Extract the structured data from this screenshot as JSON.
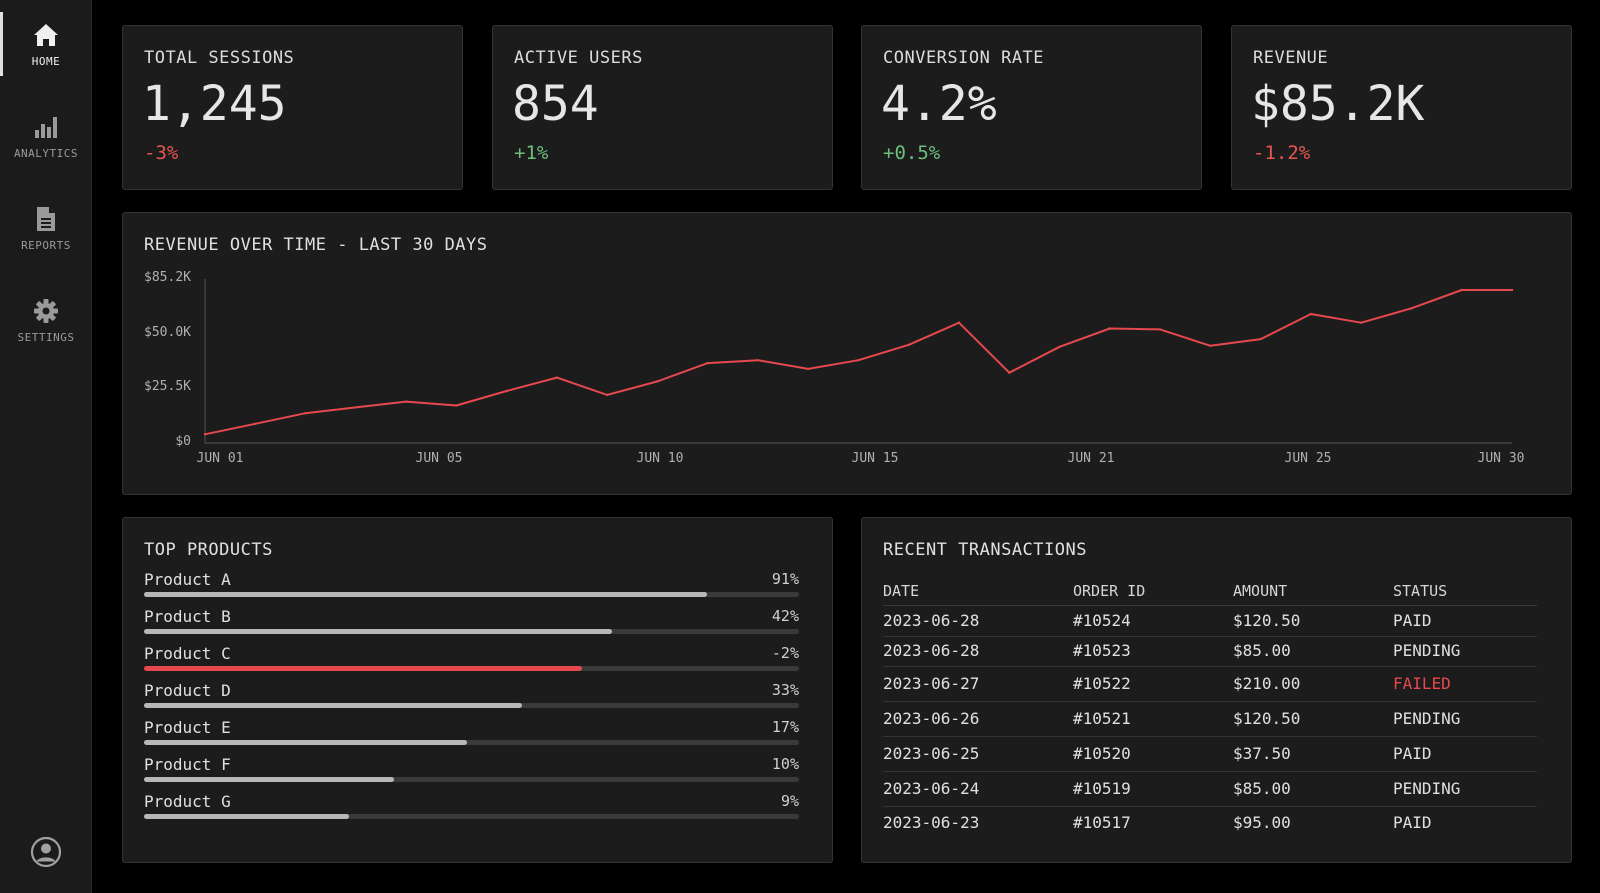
{
  "sidebar": {
    "items": [
      {
        "label": "HOME",
        "icon": "home-icon",
        "active": true
      },
      {
        "label": "ANALYTICS",
        "icon": "bar-chart-icon",
        "active": false
      },
      {
        "label": "REPORTS",
        "icon": "document-icon",
        "active": false
      },
      {
        "label": "SETTINGS",
        "icon": "gear-icon",
        "active": false
      }
    ],
    "avatar_icon": "user-circle-icon"
  },
  "kpis": [
    {
      "label": "TOTAL SESSIONS",
      "value": "1,245",
      "delta": "-3%",
      "trend": "negative"
    },
    {
      "label": "ACTIVE USERS",
      "value": "854",
      "delta": "+1%",
      "trend": "positive"
    },
    {
      "label": "CONVERSION RATE",
      "value": "4.2%",
      "delta": "+0.5%",
      "trend": "positive"
    },
    {
      "label": "REVENUE",
      "value": "$85.2K",
      "delta": "-1.2%",
      "trend": "negative"
    }
  ],
  "revenue_chart": {
    "title": "REVENUE OVER TIME - LAST 30 DAYS",
    "y_tick_labels": [
      "$85.2K",
      "$50.0K",
      "$25.5K",
      "$0"
    ],
    "x_tick_labels": [
      "JUN 01",
      "JUN 05",
      "JUN 10",
      "JUN 15",
      "JUN 21",
      "JUN 25",
      "JUN 30"
    ]
  },
  "chart_data": {
    "type": "line",
    "title": "REVENUE OVER TIME - LAST 30 DAYS",
    "xlabel": "",
    "ylabel": "",
    "ylim": [
      0,
      85.2
    ],
    "y_unit": "$K",
    "grid": false,
    "x": [
      1,
      2,
      3,
      4,
      5,
      6,
      7,
      8,
      9,
      10,
      11,
      12,
      13,
      14,
      15,
      16,
      17,
      18,
      19,
      20,
      21,
      22,
      23,
      24,
      25,
      26,
      27
    ],
    "series": [
      {
        "color": "#e5484d",
        "values": [
          4.5,
          10,
          15.5,
          18.5,
          21.5,
          19.5,
          27,
          34,
          25,
          32,
          41.5,
          43,
          38.5,
          43,
          51,
          62.5,
          36.5,
          50,
          59.5,
          59,
          50.5,
          54,
          67,
          62.5,
          70,
          79.5,
          79.5
        ]
      }
    ],
    "x_tick_labels": [
      "JUN 01",
      "JUN 05",
      "JUN 10",
      "JUN 15",
      "JUN 21",
      "JUN 25",
      "JUN 30"
    ]
  },
  "top_products": {
    "title": "TOP PRODUCTS",
    "items": [
      {
        "name": "Product A",
        "pct_label": "91%",
        "fill": 0.86,
        "negative": false
      },
      {
        "name": "Product B",
        "pct_label": "42%",
        "fill": 0.715,
        "negative": false
      },
      {
        "name": "Product C",
        "pct_label": "-2%",
        "fill": 0.668,
        "negative": true
      },
      {
        "name": "Product D",
        "pct_label": "33%",
        "fill": 0.577,
        "negative": false
      },
      {
        "name": "Product E",
        "pct_label": "17%",
        "fill": 0.493,
        "negative": false
      },
      {
        "name": "Product F",
        "pct_label": "10%",
        "fill": 0.382,
        "negative": false
      },
      {
        "name": "Product G",
        "pct_label": "9%",
        "fill": 0.313,
        "negative": false
      }
    ]
  },
  "transactions": {
    "title": "RECENT TRANSACTIONS",
    "columns": [
      "DATE",
      "ORDER ID",
      "AMOUNT",
      "STATUS"
    ],
    "rows": [
      {
        "date": "2023-06-28",
        "order_id": "#10524",
        "amount": "$120.50",
        "status": "PAID"
      },
      {
        "date": "2023-06-28",
        "order_id": "#10523",
        "amount": "$85.00",
        "status": "PENDING"
      },
      {
        "date": "2023-06-27",
        "order_id": "#10522",
        "amount": "$210.00",
        "status": "FAILED"
      },
      {
        "date": "2023-06-26",
        "order_id": "#10521",
        "amount": "$120.50",
        "status": "PENDING"
      },
      {
        "date": "2023-06-25",
        "order_id": "#10520",
        "amount": "$37.50",
        "status": "PAID"
      },
      {
        "date": "2023-06-24",
        "order_id": "#10519",
        "amount": "$85.00",
        "status": "PENDING"
      },
      {
        "date": "2023-06-23",
        "order_id": "#10517",
        "amount": "$95.00",
        "status": "PAID"
      }
    ]
  },
  "colors": {
    "accent_negative": "#e5484d",
    "accent_positive": "#6cc07a",
    "panel_bg": "#1c1c1c",
    "page_bg": "#000000"
  }
}
